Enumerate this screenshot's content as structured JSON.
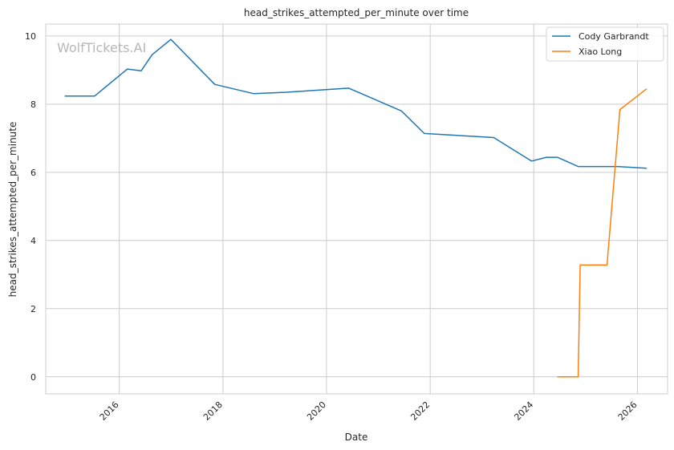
{
  "chart_data": {
    "type": "line",
    "title": "head_strikes_attempted_per_minute over time",
    "xlabel": "Date",
    "ylabel": "head_strikes_attempted_per_minute",
    "watermark": "WolfTickets.AI",
    "xlim": [
      "2014-08-01",
      "2026-08-01"
    ],
    "ylim": [
      -0.5,
      10.35
    ],
    "x_ticks": [
      {
        "date": "2016-01-01",
        "label": "2016"
      },
      {
        "date": "2018-01-01",
        "label": "2018"
      },
      {
        "date": "2020-01-01",
        "label": "2020"
      },
      {
        "date": "2022-01-01",
        "label": "2022"
      },
      {
        "date": "2024-01-01",
        "label": "2024"
      },
      {
        "date": "2026-01-01",
        "label": "2026"
      }
    ],
    "y_ticks": [
      0,
      2,
      4,
      6,
      8,
      10
    ],
    "grid": true,
    "legend_position": "top-right",
    "series": [
      {
        "name": "Cody Garbrandt",
        "color": "#1f77b4",
        "points": [
          [
            "2014-12-13",
            8.24
          ],
          [
            "2015-07-12",
            8.24
          ],
          [
            "2016-02-27",
            9.03
          ],
          [
            "2016-06-04",
            8.98
          ],
          [
            "2016-08-20",
            9.45
          ],
          [
            "2016-12-30",
            9.9
          ],
          [
            "2017-11-04",
            8.58
          ],
          [
            "2018-08-04",
            8.31
          ],
          [
            "2019-03-23",
            8.35
          ],
          [
            "2020-06-06",
            8.47
          ],
          [
            "2021-06-12",
            7.8
          ],
          [
            "2021-11-20",
            7.14
          ],
          [
            "2023-03-25",
            7.02
          ],
          [
            "2023-12-16",
            6.33
          ],
          [
            "2024-03-30",
            6.44
          ],
          [
            "2024-06-15",
            6.44
          ],
          [
            "2024-11-09",
            6.17
          ],
          [
            "2025-08-16",
            6.17
          ],
          [
            "2026-03-07",
            6.12
          ]
        ]
      },
      {
        "name": "Xiao Long",
        "color": "#ff7f0e",
        "points": [
          [
            "2024-06-15",
            0.0
          ],
          [
            "2024-11-09",
            0.0
          ],
          [
            "2024-11-23",
            3.28
          ],
          [
            "2025-05-31",
            3.28
          ],
          [
            "2025-08-30",
            7.84
          ],
          [
            "2026-03-07",
            8.45
          ]
        ]
      }
    ]
  }
}
